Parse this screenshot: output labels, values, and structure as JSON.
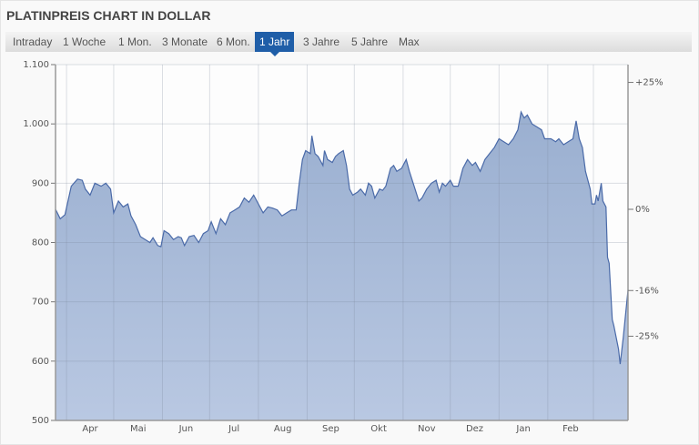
{
  "title": "PLATINPREIS CHART IN DOLLAR",
  "tabs": [
    {
      "label": "Intraday",
      "active": false
    },
    {
      "label": "1 Woche",
      "active": false
    },
    {
      "label": "1 Mon.",
      "active": false
    },
    {
      "label": "3 Monate",
      "active": false
    },
    {
      "label": "6 Mon.",
      "active": false
    },
    {
      "label": "1 Jahr",
      "active": true
    },
    {
      "label": "3 Jahre",
      "active": false
    },
    {
      "label": "5 Jahre",
      "active": false
    },
    {
      "label": "Max",
      "active": false
    }
  ],
  "colors": {
    "accent": "#1f5ea8",
    "line": "#4a6aa8",
    "fill": "#a9bbd8",
    "negative": "#c00000"
  },
  "chart_data": {
    "type": "area",
    "title": "PLATINPREIS CHART IN DOLLAR",
    "xlabel": "",
    "ylabel": "",
    "ylim": [
      500,
      1100
    ],
    "yticks": [
      "500",
      "600",
      "700",
      "800",
      "900",
      "1.000",
      "1.100"
    ],
    "ytick_values": [
      500,
      600,
      700,
      800,
      900,
      1000,
      1100
    ],
    "xticks": [
      "Apr",
      "Mai",
      "Jun",
      "Jul",
      "Aug",
      "Sep",
      "Okt",
      "Nov",
      "Dez",
      "Jan",
      "Feb"
    ],
    "month_starts": [
      "2019-04-01",
      "2019-05-01",
      "2019-06-01",
      "2019-07-01",
      "2019-08-01",
      "2019-09-01",
      "2019-10-01",
      "2019-11-01",
      "2019-12-01",
      "2020-01-01",
      "2020-02-01",
      "2020-03-01"
    ],
    "xlim": [
      "2019-03-25",
      "2020-03-23"
    ],
    "grid": true,
    "right_axis": [
      {
        "label": "+25%",
        "value": 25,
        "highlight": false
      },
      {
        "label": "0%",
        "value": 0,
        "highlight": false
      },
      {
        "label": "-16%",
        "value": -16,
        "highlight": true
      },
      {
        "label": "-25%",
        "value": -25,
        "highlight": false
      }
    ],
    "x": [
      "2019-03-25",
      "2019-03-28",
      "2019-03-31",
      "2019-04-04",
      "2019-04-08",
      "2019-04-11",
      "2019-04-13",
      "2019-04-16",
      "2019-04-19",
      "2019-04-23",
      "2019-04-26",
      "2019-04-29",
      "2019-05-01",
      "2019-05-04",
      "2019-05-07",
      "2019-05-10",
      "2019-05-12",
      "2019-05-15",
      "2019-05-18",
      "2019-05-21",
      "2019-05-24",
      "2019-05-26",
      "2019-05-29",
      "2019-05-31",
      "2019-06-02",
      "2019-06-05",
      "2019-06-08",
      "2019-06-11",
      "2019-06-13",
      "2019-06-15",
      "2019-06-18",
      "2019-06-21",
      "2019-06-24",
      "2019-06-27",
      "2019-06-30",
      "2019-07-02",
      "2019-07-05",
      "2019-07-08",
      "2019-07-11",
      "2019-07-14",
      "2019-07-17",
      "2019-07-20",
      "2019-07-23",
      "2019-07-26",
      "2019-07-29",
      "2019-08-01",
      "2019-08-04",
      "2019-08-07",
      "2019-08-10",
      "2019-08-13",
      "2019-08-16",
      "2019-08-19",
      "2019-08-22",
      "2019-08-25",
      "2019-08-27",
      "2019-08-29",
      "2019-08-31",
      "2019-09-03",
      "2019-09-04",
      "2019-09-06",
      "2019-09-08",
      "2019-09-11",
      "2019-09-12",
      "2019-09-14",
      "2019-09-17",
      "2019-09-19",
      "2019-09-21",
      "2019-09-24",
      "2019-09-26",
      "2019-09-28",
      "2019-09-30",
      "2019-10-03",
      "2019-10-05",
      "2019-10-08",
      "2019-10-10",
      "2019-10-12",
      "2019-10-14",
      "2019-10-17",
      "2019-10-19",
      "2019-10-21",
      "2019-10-24",
      "2019-10-26",
      "2019-10-28",
      "2019-10-31",
      "2019-11-03",
      "2019-11-05",
      "2019-11-08",
      "2019-11-11",
      "2019-11-13",
      "2019-11-16",
      "2019-11-19",
      "2019-11-22",
      "2019-11-24",
      "2019-11-26",
      "2019-11-28",
      "2019-12-01",
      "2019-12-03",
      "2019-12-06",
      "2019-12-09",
      "2019-12-12",
      "2019-12-15",
      "2019-12-17",
      "2019-12-20",
      "2019-12-23",
      "2019-12-26",
      "2019-12-29",
      "2020-01-01",
      "2020-01-04",
      "2020-01-07",
      "2020-01-10",
      "2020-01-13",
      "2020-01-15",
      "2020-01-17",
      "2020-01-19",
      "2020-01-22",
      "2020-01-25",
      "2020-01-28",
      "2020-01-30",
      "2020-02-03",
      "2020-02-06",
      "2020-02-08",
      "2020-02-11",
      "2020-02-14",
      "2020-02-17",
      "2020-02-19",
      "2020-02-21",
      "2020-02-23",
      "2020-02-25",
      "2020-02-28",
      "2020-02-29",
      "2020-03-02",
      "2020-03-03",
      "2020-03-04",
      "2020-03-06",
      "2020-03-07",
      "2020-03-09",
      "2020-03-10",
      "2020-03-11",
      "2020-03-13",
      "2020-03-14",
      "2020-03-17",
      "2020-03-18",
      "2020-03-20",
      "2020-03-23"
    ],
    "values": [
      856,
      840,
      847,
      895,
      907,
      905,
      890,
      880,
      900,
      895,
      900,
      890,
      850,
      870,
      860,
      865,
      845,
      830,
      810,
      805,
      800,
      808,
      795,
      793,
      820,
      815,
      805,
      810,
      808,
      795,
      810,
      812,
      800,
      815,
      820,
      835,
      815,
      840,
      830,
      850,
      855,
      860,
      875,
      868,
      880,
      865,
      850,
      860,
      858,
      855,
      845,
      850,
      855,
      855,
      900,
      940,
      955,
      950,
      980,
      950,
      945,
      930,
      955,
      940,
      935,
      945,
      950,
      955,
      930,
      890,
      880,
      885,
      890,
      880,
      900,
      895,
      875,
      890,
      888,
      895,
      925,
      930,
      920,
      925,
      940,
      920,
      895,
      870,
      875,
      890,
      900,
      905,
      885,
      900,
      895,
      905,
      895,
      895,
      925,
      940,
      930,
      935,
      920,
      940,
      950,
      960,
      975,
      970,
      965,
      975,
      990,
      1020,
      1010,
      1015,
      1000,
      995,
      990,
      975,
      975,
      970,
      975,
      965,
      970,
      975,
      1005,
      975,
      960,
      920,
      890,
      865,
      865,
      880,
      870,
      900,
      870,
      860,
      775,
      765,
      670,
      660,
      620,
      595,
      640,
      720
    ]
  }
}
